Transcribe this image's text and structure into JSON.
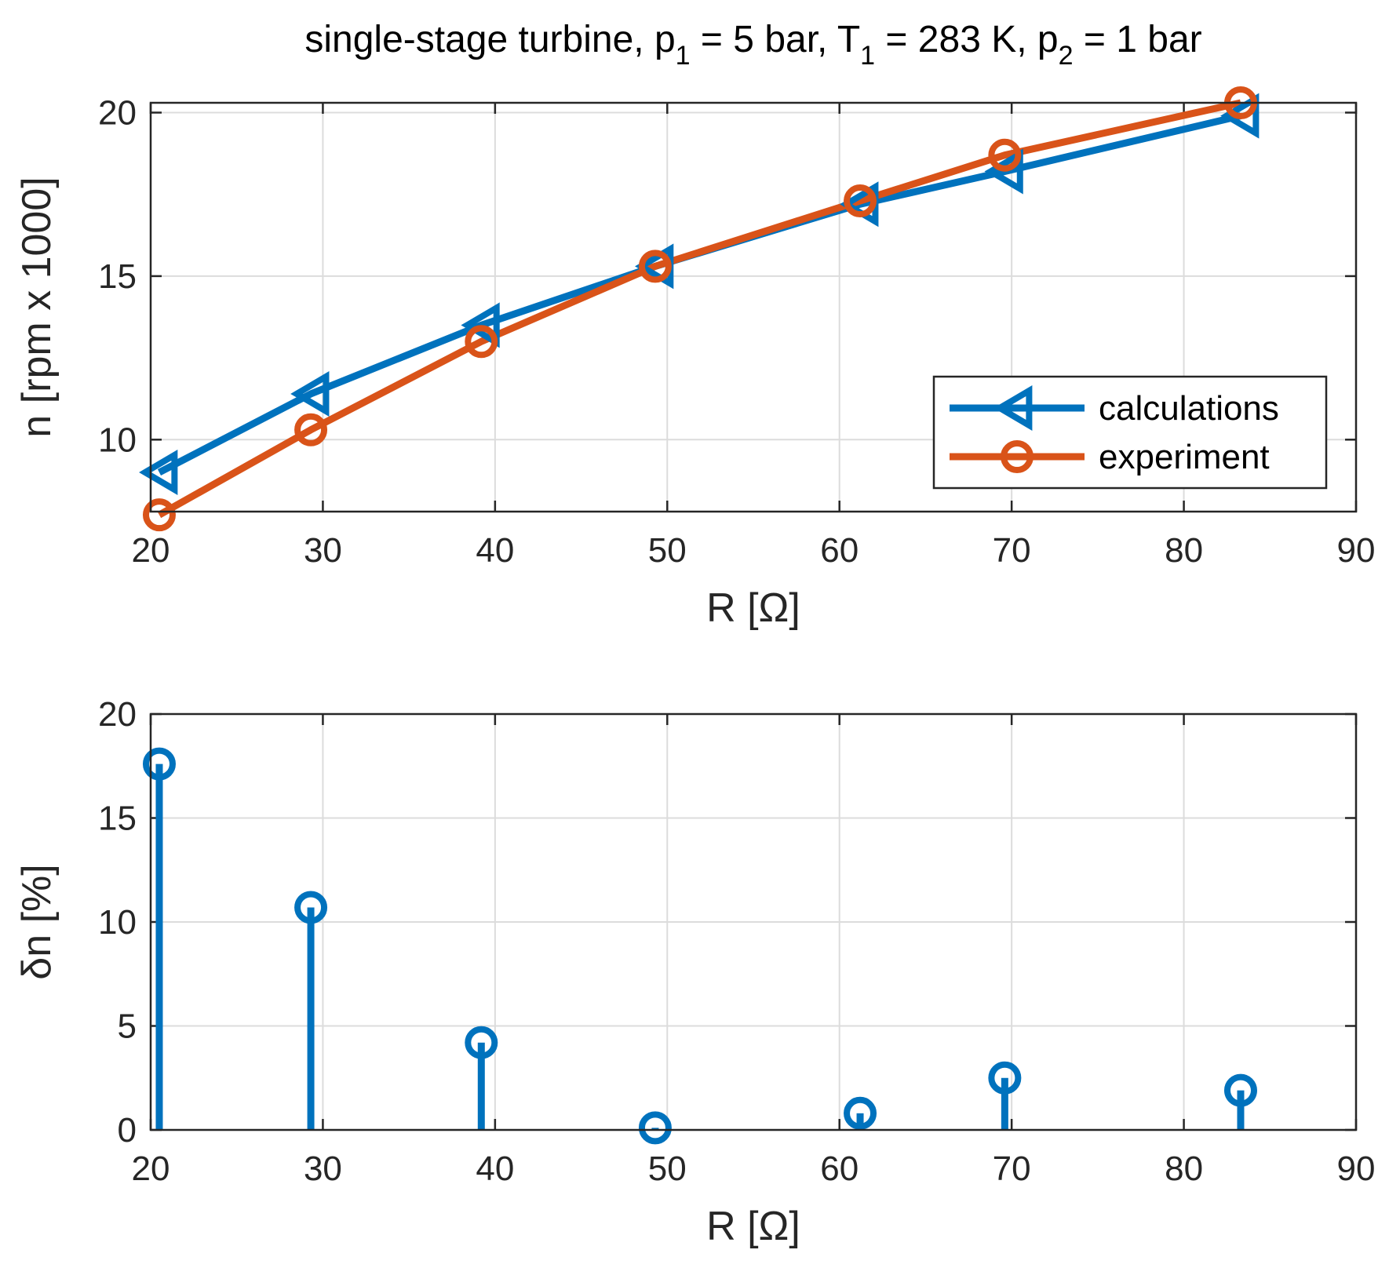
{
  "chart_data": [
    {
      "type": "line",
      "title": {
        "prefix": "single-stage turbine, p",
        "sub1": "1",
        "mid1": " = 5 bar, T",
        "sub2": "1",
        "mid2": " = 283 K, p",
        "sub3": "2",
        "suffix": " = 1 bar"
      },
      "xlabel": "R [Ω]",
      "ylabel": "n [rpm x 1000]",
      "xlim": [
        20,
        90
      ],
      "ylim": [
        7.8,
        20.3
      ],
      "xticks": [
        20,
        30,
        40,
        50,
        60,
        70,
        80,
        90
      ],
      "yticks": [
        10,
        15,
        20
      ],
      "grid": true,
      "legend_position": "bottom-right",
      "x": [
        20.5,
        29.3,
        39.2,
        49.3,
        61.2,
        69.6,
        83.3
      ],
      "series": [
        {
          "name": "calculations",
          "marker": "triangle-left",
          "color": "#0072BD",
          "values": [
            9.0,
            11.4,
            13.5,
            15.3,
            17.2,
            18.2,
            19.9
          ]
        },
        {
          "name": "experiment",
          "marker": "circle",
          "color": "#D95319",
          "values": [
            7.7,
            10.3,
            13.0,
            15.3,
            17.3,
            18.7,
            20.3
          ]
        }
      ]
    },
    {
      "type": "stem",
      "xlabel": "R [Ω]",
      "ylabel": "δn [%]",
      "xlim": [
        20,
        90
      ],
      "ylim": [
        0,
        20
      ],
      "xticks": [
        20,
        30,
        40,
        50,
        60,
        70,
        80,
        90
      ],
      "yticks": [
        0,
        5,
        10,
        15,
        20
      ],
      "grid": true,
      "color": "#0072BD",
      "x": [
        20.5,
        29.3,
        39.2,
        49.3,
        61.2,
        69.6,
        83.3
      ],
      "values": [
        17.6,
        10.7,
        4.2,
        0.1,
        0.8,
        2.5,
        1.9
      ]
    }
  ]
}
